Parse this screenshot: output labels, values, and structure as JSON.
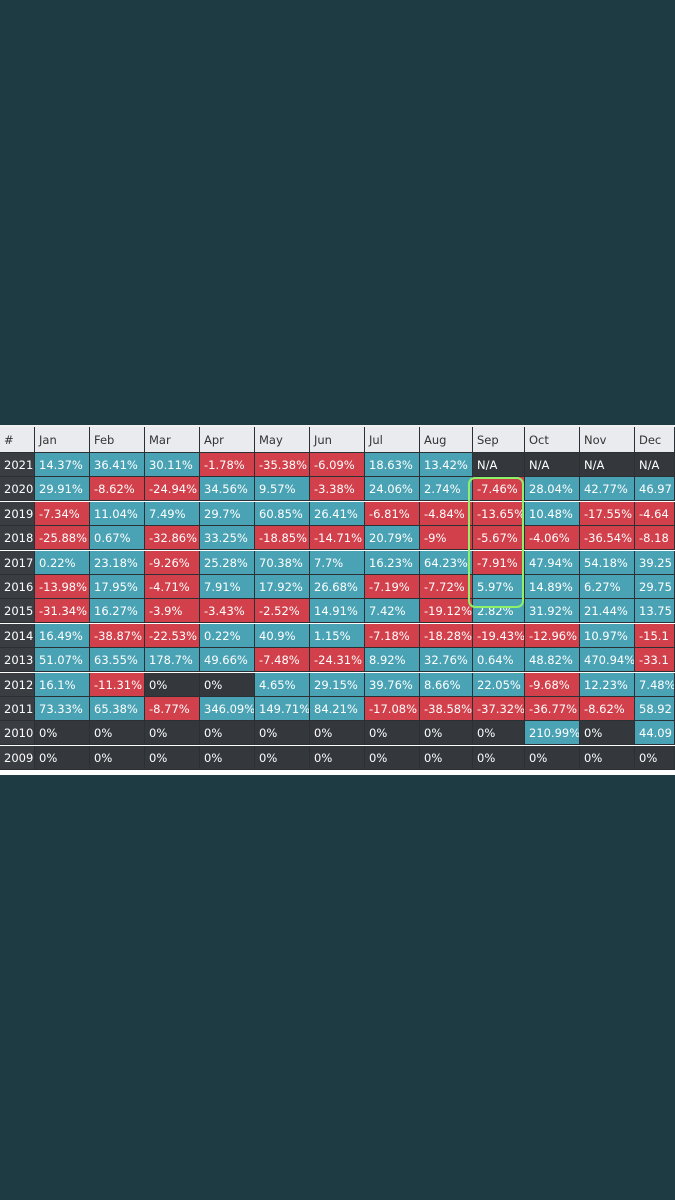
{
  "chart_data": {
    "type": "table",
    "corner_label": "#",
    "columns": [
      "Jan",
      "Feb",
      "Mar",
      "Apr",
      "May",
      "Jun",
      "Jul",
      "Aug",
      "Sep",
      "Oct",
      "Nov",
      "Dec"
    ],
    "rows": [
      {
        "year": "2021",
        "values": [
          "14.37%",
          "36.41%",
          "30.11%",
          "-1.78%",
          "-35.38%",
          "-6.09%",
          "18.63%",
          "13.42%",
          "N/A",
          "N/A",
          "N/A",
          "N/A"
        ]
      },
      {
        "year": "2020",
        "values": [
          "29.91%",
          "-8.62%",
          "-24.94%",
          "34.56%",
          "9.57%",
          "-3.38%",
          "24.06%",
          "2.74%",
          "-7.46%",
          "28.04%",
          "42.77%",
          "46.97"
        ]
      },
      {
        "year": "2019",
        "values": [
          "-7.34%",
          "11.04%",
          "7.49%",
          "29.7%",
          "60.85%",
          "26.41%",
          "-6.81%",
          "-4.84%",
          "-13.65%",
          "10.48%",
          "-17.55%",
          "-4.64"
        ]
      },
      {
        "year": "2018",
        "values": [
          "-25.88%",
          "0.67%",
          "-32.86%",
          "33.25%",
          "-18.85%",
          "-14.71%",
          "20.79%",
          "-9%",
          "-5.67%",
          "-4.06%",
          "-36.54%",
          "-8.18"
        ]
      },
      {
        "year": "2017",
        "values": [
          "0.22%",
          "23.18%",
          "-9.26%",
          "25.28%",
          "70.38%",
          "7.7%",
          "16.23%",
          "64.23%",
          "-7.91%",
          "47.94%",
          "54.18%",
          "39.25"
        ]
      },
      {
        "year": "2016",
        "values": [
          "-13.98%",
          "17.95%",
          "-4.71%",
          "7.91%",
          "17.92%",
          "26.68%",
          "-7.19%",
          "-7.72%",
          "5.97%",
          "14.89%",
          "6.27%",
          "29.75"
        ]
      },
      {
        "year": "2015",
        "values": [
          "-31.34%",
          "16.27%",
          "-3.9%",
          "-3.43%",
          "-2.52%",
          "14.91%",
          "7.42%",
          "-19.12%",
          "2.82%",
          "31.92%",
          "21.44%",
          "13.75"
        ]
      },
      {
        "year": "2014",
        "values": [
          "16.49%",
          "-38.87%",
          "-22.53%",
          "0.22%",
          "40.9%",
          "1.15%",
          "-7.18%",
          "-18.28%",
          "-19.43%",
          "-12.96%",
          "10.97%",
          "-15.1"
        ]
      },
      {
        "year": "2013",
        "values": [
          "51.07%",
          "63.55%",
          "178.7%",
          "49.66%",
          "-7.48%",
          "-24.31%",
          "8.92%",
          "32.76%",
          "0.64%",
          "48.82%",
          "470.94%",
          "-33.1"
        ]
      },
      {
        "year": "2012",
        "values": [
          "16.1%",
          "-11.31%",
          "0%",
          "0%",
          "4.65%",
          "29.15%",
          "39.76%",
          "8.66%",
          "22.05%",
          "-9.68%",
          "12.23%",
          "7.48%"
        ]
      },
      {
        "year": "2011",
        "values": [
          "73.33%",
          "65.38%",
          "-8.77%",
          "346.09%",
          "149.71%",
          "84.21%",
          "-17.08%",
          "-38.58%",
          "-37.32%",
          "-36.77%",
          "-8.62%",
          "58.92"
        ]
      },
      {
        "year": "2010",
        "values": [
          "0%",
          "0%",
          "0%",
          "0%",
          "0%",
          "0%",
          "0%",
          "0%",
          "0%",
          "210.99%",
          "0%",
          "44.09"
        ]
      },
      {
        "year": "2009",
        "values": [
          "0%",
          "0%",
          "0%",
          "0%",
          "0%",
          "0%",
          "0%",
          "0%",
          "0%",
          "0%",
          "0%",
          "0%"
        ]
      }
    ],
    "colors": {
      "positive": "#4aa3b5",
      "negative": "#d2404b",
      "neutral": "#34383d",
      "header": "#e9ebef",
      "highlight": "#8ff06a"
    },
    "highlight_note_columns": [
      "Sep"
    ],
    "highlight_note_rows": [
      "2020",
      "2019",
      "2018",
      "2017"
    ]
  }
}
